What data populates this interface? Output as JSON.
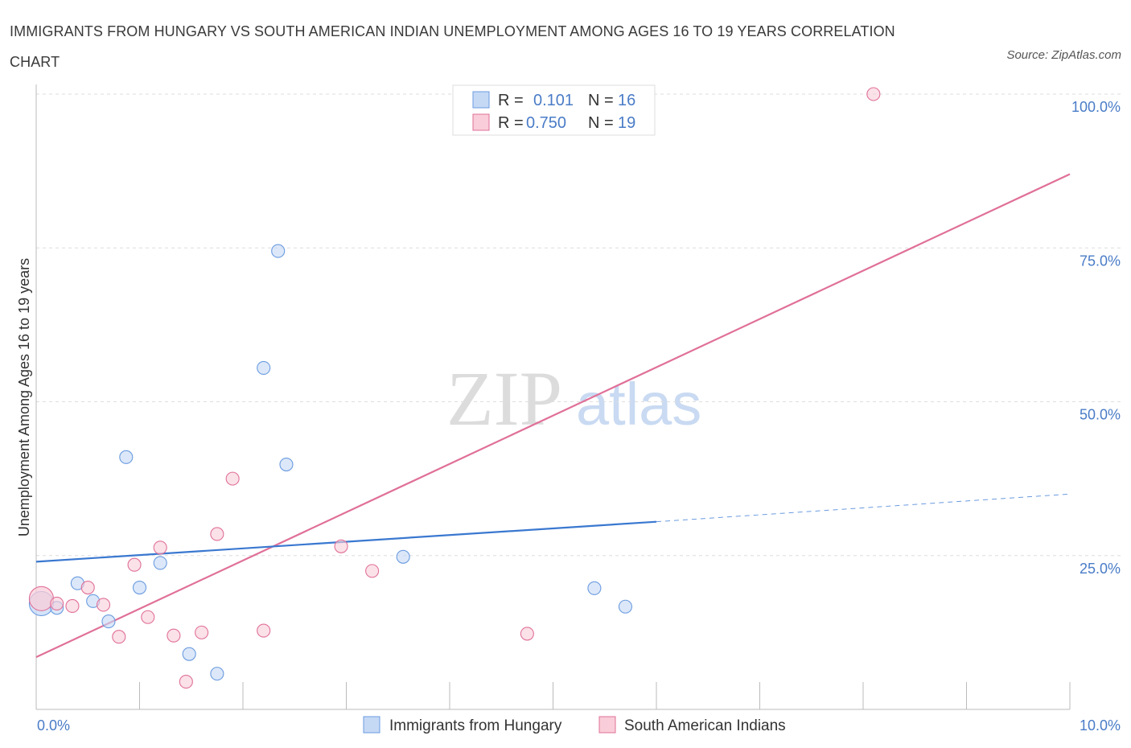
{
  "title": "IMMIGRANTS FROM HUNGARY VS SOUTH AMERICAN INDIAN UNEMPLOYMENT AMONG AGES 16 TO 19 YEARS CORRELATION CHART",
  "source": "Source: ZipAtlas.com",
  "watermark": {
    "zip": "ZIP",
    "atlas": "atlas"
  },
  "legend": {
    "r_label": "R =",
    "n_label": "N =",
    "rows": [
      {
        "r": "0.101",
        "n": "16"
      },
      {
        "r": "0.750",
        "n": "19"
      }
    ]
  },
  "chart_data": {
    "type": "scatter",
    "title": "IMMIGRANTS FROM HUNGARY VS SOUTH AMERICAN INDIAN UNEMPLOYMENT AMONG AGES 16 TO 19 YEARS CORRELATION CHART",
    "xlabel": "",
    "ylabel": "Unemployment Among Ages 16 to 19 years",
    "xlim": [
      0,
      10
    ],
    "ylim": [
      0,
      100
    ],
    "x_tick_labels": [
      "0.0%",
      "10.0%"
    ],
    "y_tick_labels": [
      "100.0%",
      "75.0%",
      "50.0%",
      "25.0%"
    ],
    "y_ticks": [
      100,
      75,
      50,
      25
    ],
    "grid": true,
    "legend_position": "top-center",
    "series": [
      {
        "name": "Immigrants from Hungary",
        "color": "#6b9be0",
        "fill": "#c5d9f5",
        "points": [
          [
            0.05,
            17.2
          ],
          [
            0.2,
            16.5
          ],
          [
            0.4,
            20.5
          ],
          [
            0.55,
            17.6
          ],
          [
            0.7,
            14.3
          ],
          [
            0.87,
            41.0
          ],
          [
            1.0,
            19.8
          ],
          [
            1.2,
            23.8
          ],
          [
            1.48,
            9.0
          ],
          [
            1.75,
            5.8
          ],
          [
            2.2,
            55.5
          ],
          [
            2.34,
            74.5
          ],
          [
            2.42,
            39.8
          ],
          [
            3.55,
            24.8
          ],
          [
            5.4,
            19.7
          ],
          [
            5.7,
            16.7
          ]
        ],
        "trend": {
          "x0": 0,
          "y0": 24.0,
          "x1": 6.0,
          "y1": 30.5,
          "dash_to_x": 10,
          "dash_to_y": 35.0
        }
      },
      {
        "name": "South American Indians",
        "color": "#e07098",
        "fill": "#f9cdd9",
        "points": [
          [
            0.05,
            18.0
          ],
          [
            0.2,
            17.2
          ],
          [
            0.35,
            16.8
          ],
          [
            0.5,
            19.8
          ],
          [
            0.65,
            17.0
          ],
          [
            0.8,
            11.8
          ],
          [
            0.95,
            23.5
          ],
          [
            1.08,
            15.0
          ],
          [
            1.2,
            26.3
          ],
          [
            1.33,
            12.0
          ],
          [
            1.45,
            4.5
          ],
          [
            1.6,
            12.5
          ],
          [
            1.75,
            28.5
          ],
          [
            1.9,
            37.5
          ],
          [
            2.2,
            12.8
          ],
          [
            2.95,
            26.5
          ],
          [
            3.25,
            22.5
          ],
          [
            4.75,
            12.3
          ],
          [
            8.1,
            100.0
          ]
        ],
        "trend": {
          "x0": 0,
          "y0": 8.5,
          "x1": 10,
          "y1": 87.0
        }
      }
    ]
  }
}
